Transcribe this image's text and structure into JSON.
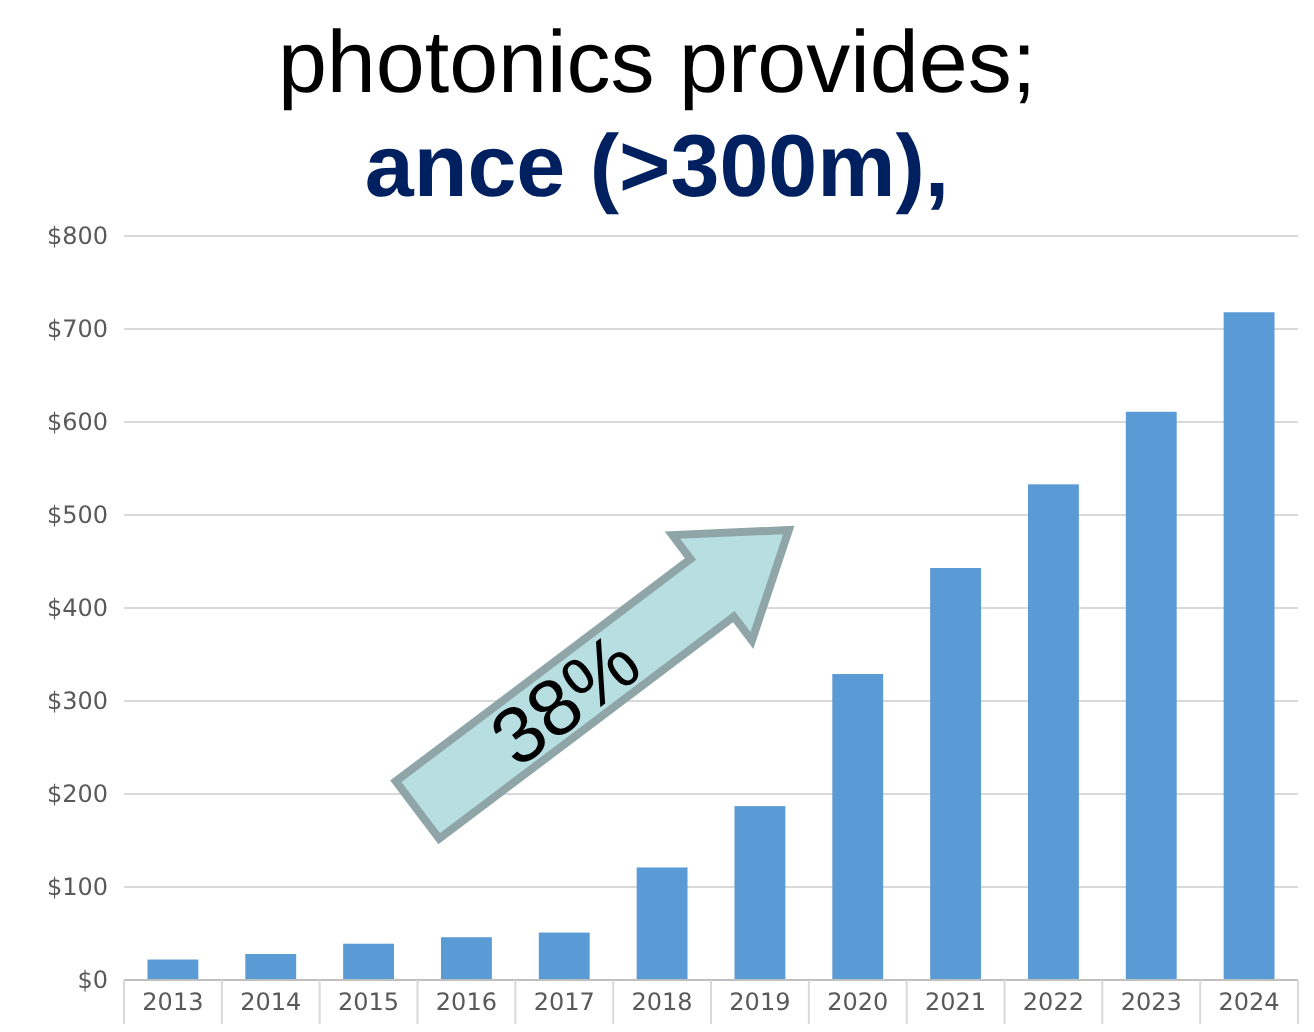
{
  "chart_data": {
    "type": "bar",
    "title": "photonics provides;",
    "subtitle": "ance (>300m),",
    "categories": [
      "2013",
      "2014",
      "2015",
      "2016",
      "2017",
      "2018",
      "2019",
      "2020",
      "2021",
      "2022",
      "2023",
      "2024"
    ],
    "values": [
      22,
      28,
      39,
      46,
      51,
      121,
      187,
      329,
      443,
      533,
      611,
      718
    ],
    "color": "#5b9bd5",
    "ylim": [
      0,
      800
    ],
    "yticks": [
      {
        "value": 0,
        "label": "$0"
      },
      {
        "value": 100,
        "label": "$100"
      },
      {
        "value": 200,
        "label": "$200"
      },
      {
        "value": 300,
        "label": "$300"
      },
      {
        "value": 400,
        "label": "$400"
      },
      {
        "value": 500,
        "label": "$500"
      },
      {
        "value": 600,
        "label": "$600"
      },
      {
        "value": 700,
        "label": "$700"
      },
      {
        "value": 800,
        "label": "$800"
      }
    ],
    "grid": "y",
    "annotations": [
      "38%"
    ]
  }
}
